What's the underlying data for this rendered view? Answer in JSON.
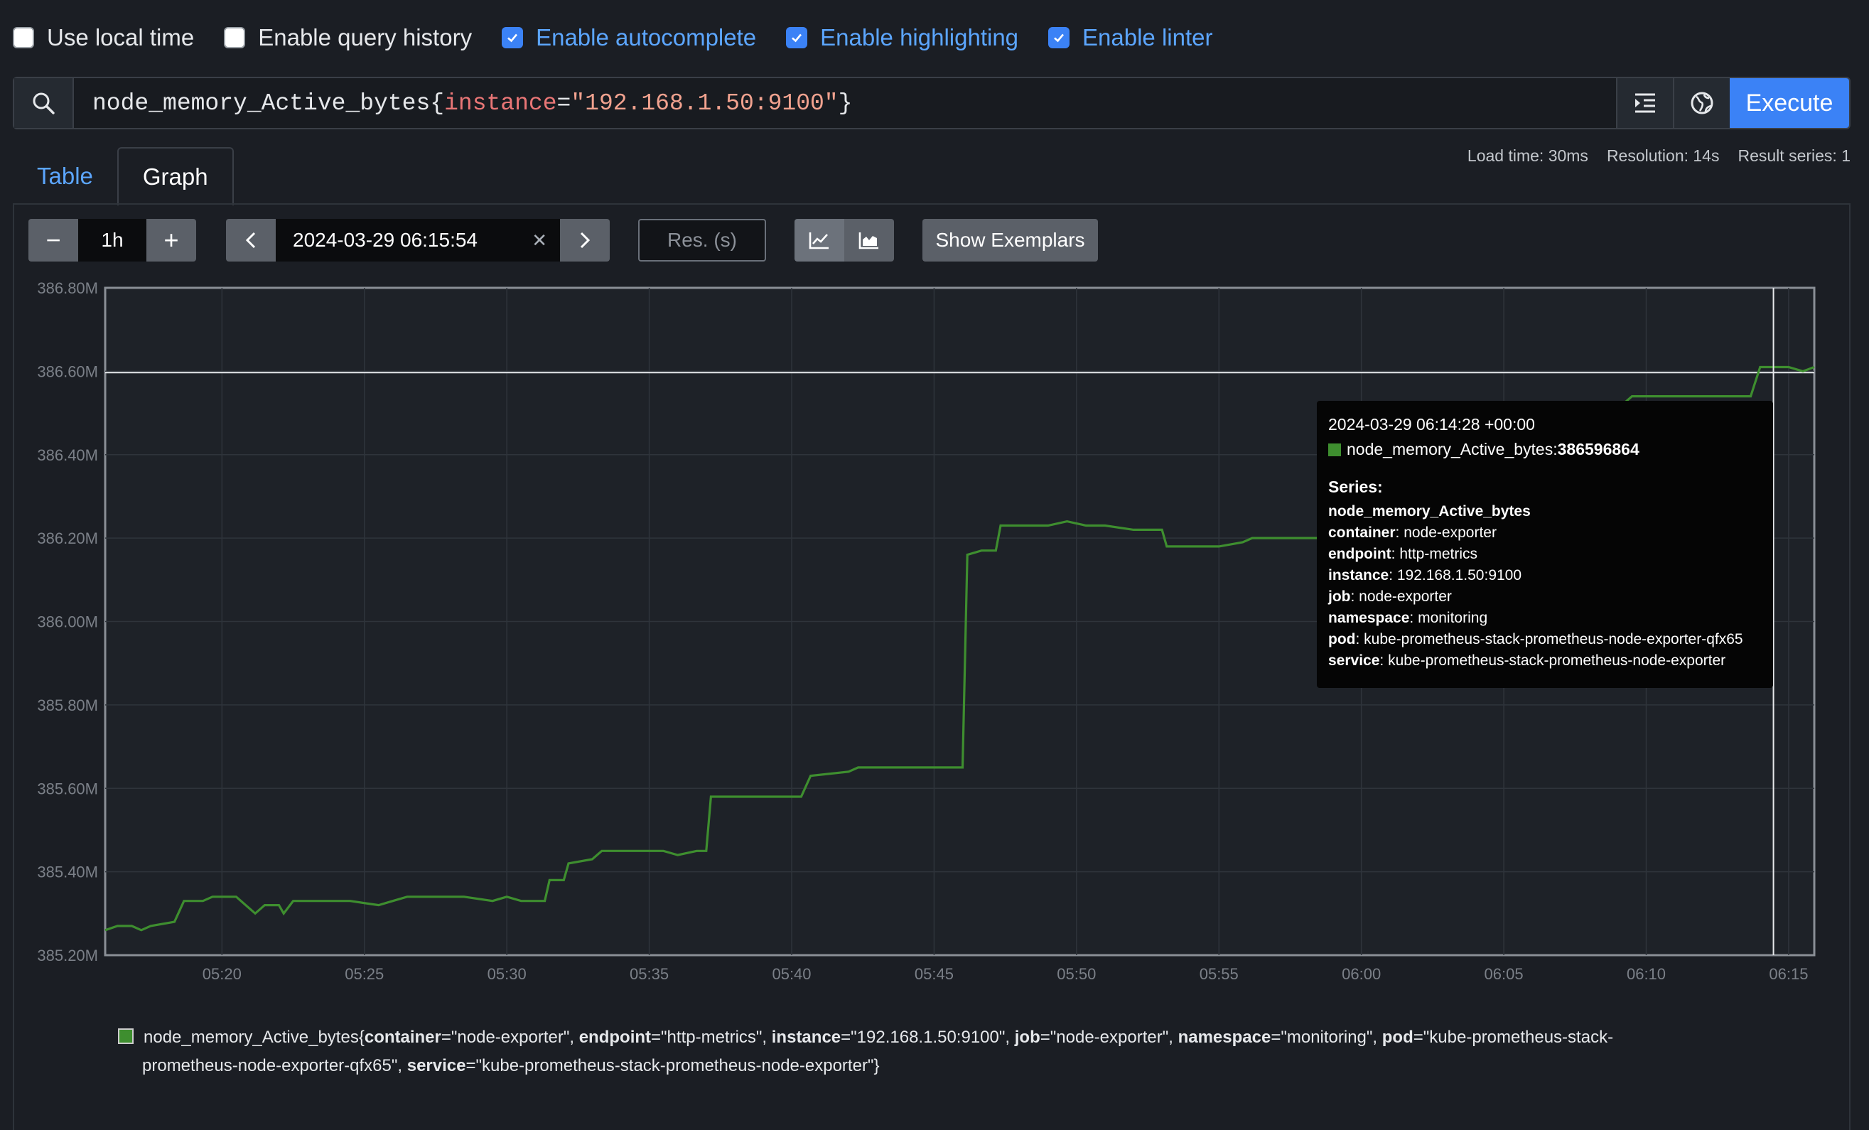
{
  "options": [
    {
      "label": "Use local time",
      "checked": false
    },
    {
      "label": "Enable query history",
      "checked": false
    },
    {
      "label": "Enable autocomplete",
      "checked": true
    },
    {
      "label": "Enable highlighting",
      "checked": true
    },
    {
      "label": "Enable linter",
      "checked": true
    }
  ],
  "query": {
    "metric": "node_memory_Active_bytes",
    "label_name": "instance",
    "label_value": "\"192.168.1.50:9100\"",
    "execute_label": "Execute"
  },
  "tabs": {
    "table": "Table",
    "graph": "Graph",
    "active": "Graph"
  },
  "stats": {
    "load_time": "Load time: 30ms",
    "resolution": "Resolution: 14s",
    "result_series": "Result series: 1"
  },
  "controls": {
    "minus": "−",
    "range": "1h",
    "plus": "+",
    "end_time": "2024-03-29 06:15:54",
    "clear": "✕",
    "res_placeholder": "Res. (s)",
    "stacked_mode": "unstacked",
    "exemplars_label": "Show Exemplars"
  },
  "colors": {
    "series": "#3e8e2f",
    "accent": "#3b82f6",
    "background": "#1b1e24"
  },
  "chart_data": {
    "type": "line",
    "ylim": [
      385.2,
      386.8
    ],
    "yunit": "M",
    "yticks": [
      "385.20M",
      "385.40M",
      "385.60M",
      "385.80M",
      "386.00M",
      "386.20M",
      "386.40M",
      "386.60M",
      "386.80M"
    ],
    "xticks": [
      "05:20",
      "05:25",
      "05:30",
      "05:35",
      "05:40",
      "05:45",
      "05:50",
      "05:55",
      "06:00",
      "06:05",
      "06:10",
      "06:15"
    ],
    "xlim": [
      "05:15:54",
      "06:15:54"
    ],
    "grid": true,
    "series": [
      {
        "name": "node_memory_Active_bytes",
        "points": [
          [
            "05:15:54",
            385.26
          ],
          [
            "05:16:20",
            385.27
          ],
          [
            "05:16:50",
            385.27
          ],
          [
            "05:17:10",
            385.26
          ],
          [
            "05:17:30",
            385.27
          ],
          [
            "05:18:20",
            385.28
          ],
          [
            "05:18:40",
            385.33
          ],
          [
            "05:19:20",
            385.33
          ],
          [
            "05:19:40",
            385.34
          ],
          [
            "05:20:30",
            385.34
          ],
          [
            "05:20:50",
            385.32
          ],
          [
            "05:21:10",
            385.3
          ],
          [
            "05:21:30",
            385.32
          ],
          [
            "05:22:00",
            385.32
          ],
          [
            "05:22:10",
            385.3
          ],
          [
            "05:22:30",
            385.33
          ],
          [
            "05:24:30",
            385.33
          ],
          [
            "05:25:30",
            385.32
          ],
          [
            "05:26:00",
            385.33
          ],
          [
            "05:26:30",
            385.34
          ],
          [
            "05:28:30",
            385.34
          ],
          [
            "05:29:30",
            385.33
          ],
          [
            "05:30:00",
            385.34
          ],
          [
            "05:30:30",
            385.33
          ],
          [
            "05:31:20",
            385.33
          ],
          [
            "05:31:30",
            385.38
          ],
          [
            "05:32:00",
            385.38
          ],
          [
            "05:32:10",
            385.42
          ],
          [
            "05:33:00",
            385.43
          ],
          [
            "05:33:20",
            385.45
          ],
          [
            "05:34:00",
            385.45
          ],
          [
            "05:35:30",
            385.45
          ],
          [
            "05:36:00",
            385.44
          ],
          [
            "05:36:40",
            385.45
          ],
          [
            "05:37:00",
            385.45
          ],
          [
            "05:37:10",
            385.58
          ],
          [
            "05:38:30",
            385.58
          ],
          [
            "05:39:00",
            385.58
          ],
          [
            "05:39:30",
            385.58
          ],
          [
            "05:40:20",
            385.58
          ],
          [
            "05:40:40",
            385.63
          ],
          [
            "05:42:00",
            385.64
          ],
          [
            "05:42:20",
            385.65
          ],
          [
            "05:43:40",
            385.65
          ],
          [
            "05:44:00",
            385.65
          ],
          [
            "05:45:00",
            385.65
          ],
          [
            "05:45:40",
            385.65
          ],
          [
            "05:46:00",
            385.65
          ],
          [
            "05:46:10",
            386.16
          ],
          [
            "05:46:40",
            386.17
          ],
          [
            "05:47:10",
            386.17
          ],
          [
            "05:47:20",
            386.23
          ],
          [
            "05:48:30",
            386.23
          ],
          [
            "05:49:00",
            386.23
          ],
          [
            "05:49:40",
            386.24
          ],
          [
            "05:50:20",
            386.23
          ],
          [
            "05:51:00",
            386.23
          ],
          [
            "05:52:00",
            386.22
          ],
          [
            "05:53:00",
            386.22
          ],
          [
            "05:53:10",
            386.18
          ],
          [
            "05:54:20",
            386.18
          ],
          [
            "05:55:00",
            386.18
          ],
          [
            "05:55:50",
            386.19
          ],
          [
            "05:56:10",
            386.2
          ],
          [
            "05:57:20",
            386.2
          ],
          [
            "05:58:00",
            386.2
          ],
          [
            "05:59:00",
            386.2
          ],
          [
            "06:00:00",
            386.2
          ],
          [
            "06:02:00",
            386.2
          ],
          [
            "06:04:00",
            386.2
          ],
          [
            "06:06:00",
            386.21
          ],
          [
            "06:08:00",
            386.48
          ],
          [
            "06:08:40",
            386.52
          ],
          [
            "06:09:10",
            386.52
          ],
          [
            "06:09:30",
            386.54
          ],
          [
            "06:11:00",
            386.54
          ],
          [
            "06:12:30",
            386.54
          ],
          [
            "06:13:10",
            386.54
          ],
          [
            "06:13:40",
            386.54
          ],
          [
            "06:14:00",
            386.61
          ],
          [
            "06:14:28",
            386.61
          ],
          [
            "06:15:00",
            386.61
          ],
          [
            "06:15:30",
            386.6
          ],
          [
            "06:15:54",
            386.61
          ]
        ]
      }
    ],
    "hover": {
      "time": "06:14:28",
      "value": 386.596864
    }
  },
  "tooltip": {
    "timestamp": "2024-03-29 06:14:28 +00:00",
    "series_label": "node_memory_Active_bytes: ",
    "value": "386596864",
    "series_header": "Series:",
    "metric": "node_memory_Active_bytes",
    "labels": [
      {
        "k": "container",
        "v": ": node-exporter"
      },
      {
        "k": "endpoint",
        "v": ": http-metrics"
      },
      {
        "k": "instance",
        "v": ": 192.168.1.50:9100"
      },
      {
        "k": "job",
        "v": ": node-exporter"
      },
      {
        "k": "namespace",
        "v": ": monitoring"
      },
      {
        "k": "pod",
        "v": ": kube-prometheus-stack-prometheus-node-exporter-qfx65"
      },
      {
        "k": "service",
        "v": ": kube-prometheus-stack-prometheus-node-exporter"
      }
    ]
  },
  "legend": {
    "metric": "node_memory_Active_bytes{",
    "k1": "container",
    "v1": "=\"node-exporter\", ",
    "k2": "endpoint",
    "v2": "=\"http-metrics\", ",
    "k3": "instance",
    "v3": "=\"192.168.1.50:9100\", ",
    "k4": "job",
    "v4": "=\"node-exporter\", ",
    "k5": "namespace",
    "v5": "=\"monitoring\", ",
    "k6": "pod",
    "v6a": "=\"kube-prometheus-stack-",
    "v6b": "prometheus-node-exporter-qfx65\", ",
    "k7": "service",
    "v7": "=\"kube-prometheus-stack-prometheus-node-exporter\"}"
  }
}
